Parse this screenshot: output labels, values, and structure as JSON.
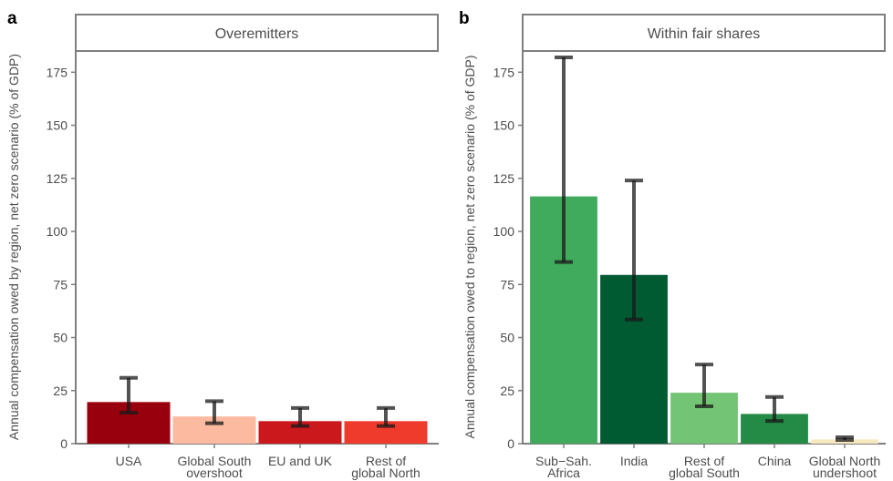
{
  "chart_data": [
    {
      "type": "bar",
      "panel_label": "a",
      "title": "Overemitters",
      "ylabel": "Annual compensation owed by region, net zero scenario (% of GDP)",
      "ylim": [
        0,
        185
      ],
      "yticks": [
        0,
        25,
        50,
        75,
        100,
        125,
        150,
        175
      ],
      "categories": [
        [
          "USA"
        ],
        [
          "Global South",
          "overshoot"
        ],
        [
          "EU and UK"
        ],
        [
          "Rest of",
          "global North"
        ]
      ],
      "values": [
        19.6,
        12.8,
        10.6,
        10.6
      ],
      "error_low": [
        14.6,
        9.6,
        8.3,
        8.3
      ],
      "error_high": [
        31.0,
        20.0,
        16.8,
        16.8
      ],
      "colors": [
        "#99000d",
        "#fcbba1",
        "#cb181d",
        "#ef3b2c"
      ],
      "grid": false,
      "legend": "none"
    },
    {
      "type": "bar",
      "panel_label": "b",
      "title": "Within fair shares",
      "ylabel": "Annual compensation owed to region, net zero scenario (% of GDP)",
      "ylim": [
        0,
        185
      ],
      "yticks": [
        0,
        25,
        50,
        75,
        100,
        125,
        150,
        175
      ],
      "categories": [
        [
          "Sub−Sah.",
          "Africa"
        ],
        [
          "India"
        ],
        [
          "Rest of",
          "global South"
        ],
        [
          "China"
        ],
        [
          "Global North",
          "undershoot"
        ]
      ],
      "values": [
        116.5,
        79.5,
        24.0,
        14.0,
        2.0
      ],
      "error_low": [
        85.6,
        58.5,
        17.6,
        10.7,
        1.7
      ],
      "error_high": [
        182.0,
        124.0,
        37.3,
        22.0,
        3.0
      ],
      "colors": [
        "#41ab5d",
        "#005a32",
        "#74c476",
        "#238b45",
        "#f7e8c0"
      ],
      "grid": false,
      "legend": "none"
    }
  ]
}
